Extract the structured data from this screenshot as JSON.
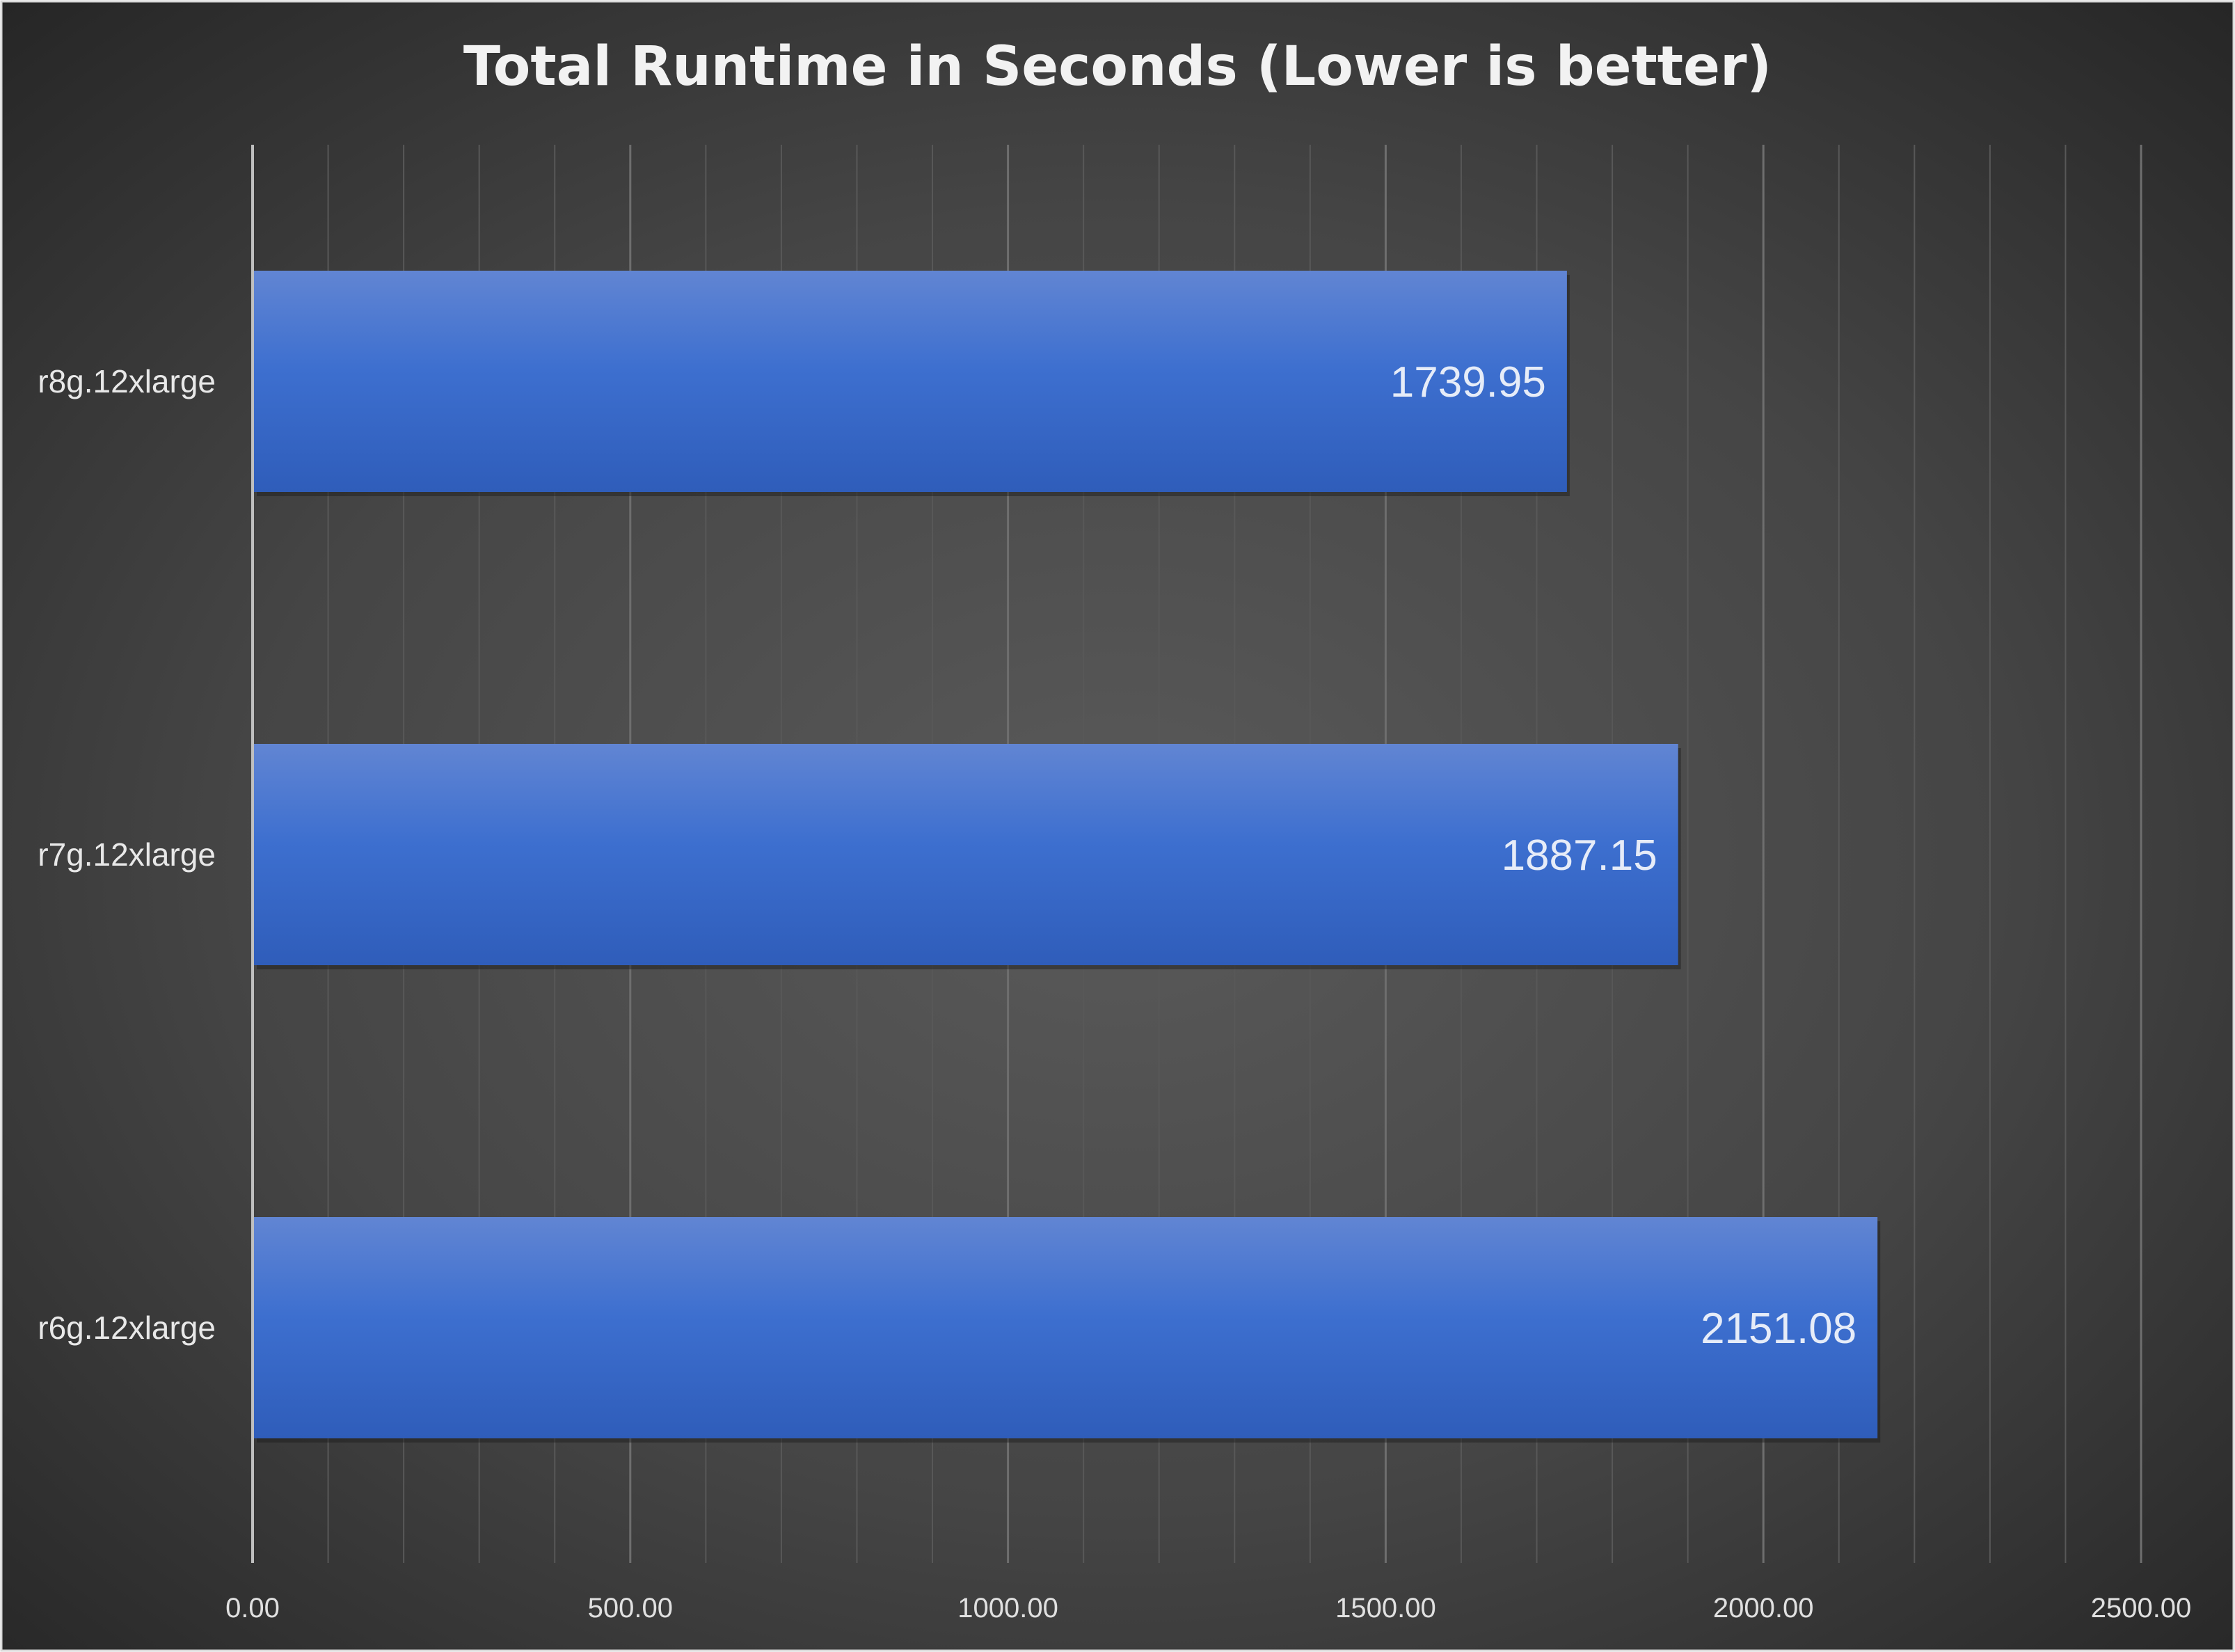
{
  "chart_data": {
    "type": "bar",
    "orientation": "horizontal",
    "title": "Total Runtime in Seconds (Lower is better)",
    "categories": [
      "r8g.12xlarge",
      "r7g.12xlarge",
      "r6g.12xlarge"
    ],
    "values": [
      1739.95,
      1887.15,
      2151.08
    ],
    "value_labels": [
      "1739.95",
      "1887.15",
      "2151.08"
    ],
    "xlim": [
      0,
      2500
    ],
    "x_ticks": [
      "0.00",
      "500.00",
      "1000.00",
      "1500.00",
      "2000.00",
      "2500.00"
    ],
    "xlabel": "",
    "ylabel": "",
    "grid": true,
    "legend": "none",
    "bar_color": "#4472c4",
    "background_color": "#404040"
  }
}
